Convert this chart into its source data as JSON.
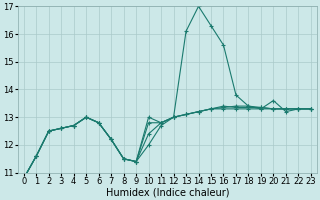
{
  "x": [
    0,
    1,
    2,
    3,
    4,
    5,
    6,
    7,
    8,
    9,
    10,
    11,
    12,
    13,
    14,
    15,
    16,
    17,
    18,
    19,
    20,
    21,
    22,
    23
  ],
  "line_max": [
    10.8,
    11.6,
    12.5,
    12.6,
    12.7,
    13.0,
    12.8,
    12.2,
    11.5,
    11.4,
    13.0,
    12.8,
    13.0,
    16.1,
    17.0,
    16.3,
    15.6,
    13.8,
    13.4,
    13.3,
    13.6,
    13.2,
    13.3,
    13.3
  ],
  "line_avg": [
    10.8,
    11.6,
    12.5,
    12.6,
    12.7,
    13.0,
    12.8,
    12.2,
    11.5,
    11.4,
    12.8,
    12.8,
    13.0,
    13.1,
    13.2,
    13.3,
    13.3,
    13.3,
    13.3,
    13.3,
    13.3,
    13.3,
    13.3,
    13.3
  ],
  "line_p1": [
    10.8,
    11.6,
    12.5,
    12.6,
    12.7,
    13.0,
    12.8,
    12.2,
    11.5,
    11.4,
    12.4,
    12.8,
    13.0,
    13.1,
    13.2,
    13.3,
    13.4,
    13.35,
    13.35,
    13.35,
    13.3,
    13.3,
    13.3,
    13.3
  ],
  "line_p2": [
    10.8,
    11.6,
    12.5,
    12.6,
    12.7,
    13.0,
    12.8,
    12.2,
    11.5,
    11.4,
    12.0,
    12.7,
    13.0,
    13.1,
    13.2,
    13.3,
    13.35,
    13.4,
    13.4,
    13.35,
    13.3,
    13.3,
    13.3,
    13.3
  ],
  "color": "#1a7a6e",
  "bg_color": "#cce8e8",
  "grid_color": "#aacaca",
  "ylim_min": 11,
  "ylim_max": 17,
  "yticks": [
    11,
    12,
    13,
    14,
    15,
    16,
    17
  ],
  "xticks": [
    0,
    1,
    2,
    3,
    4,
    5,
    6,
    7,
    8,
    9,
    10,
    11,
    12,
    13,
    14,
    15,
    16,
    17,
    18,
    19,
    20,
    21,
    22,
    23
  ],
  "xlabel": "Humidex (Indice chaleur)",
  "xlabel_fontsize": 7.0,
  "tick_fontsize": 6.0
}
